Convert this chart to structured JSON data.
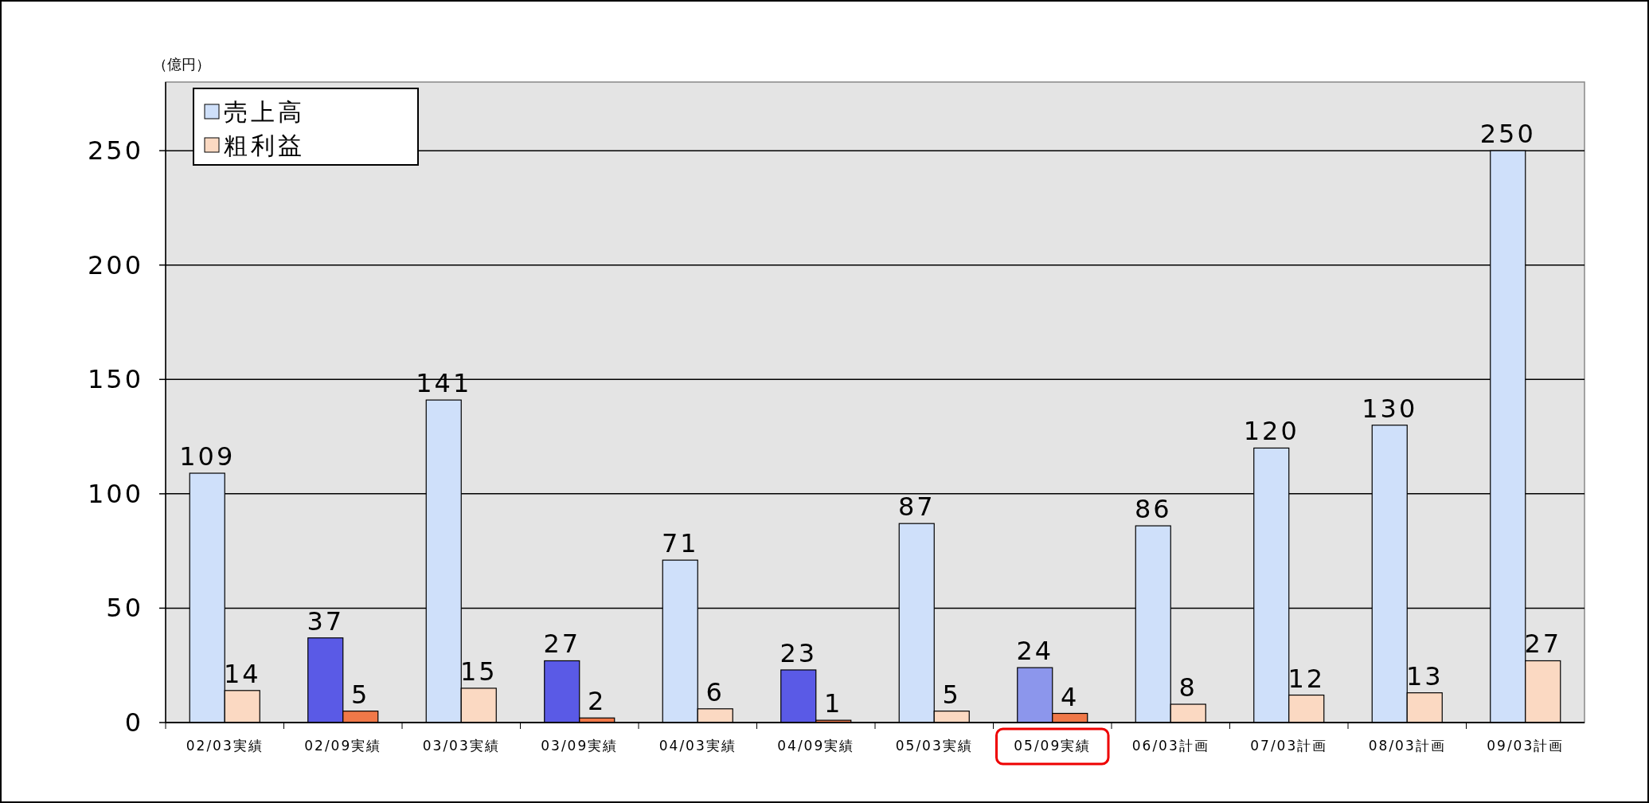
{
  "chart_data": {
    "type": "bar",
    "ylabel": "（億円）",
    "categories": [
      "02/03実績",
      "02/09実績",
      "03/03実績",
      "03/09実績",
      "04/03実績",
      "04/09実績",
      "05/03実績",
      "05/09実績",
      "06/03計画",
      "07/03計画",
      "08/03計画",
      "09/03計画"
    ],
    "series": [
      {
        "name": "売上高",
        "color": "#cfe0fa",
        "colors": [
          "#cfe0fa",
          "#5a5ae6",
          "#cfe0fa",
          "#5a5ae6",
          "#cfe0fa",
          "#5a5ae6",
          "#cfe0fa",
          "#8c96ec",
          "#cfe0fa",
          "#cfe0fa",
          "#cfe0fa",
          "#cfe0fa"
        ],
        "values": [
          109,
          37,
          141,
          27,
          71,
          23,
          87,
          24,
          86,
          120,
          130,
          250
        ]
      },
      {
        "name": "粗利益",
        "color": "#fbd9c2",
        "colors": [
          "#fbd9c2",
          "#f07848",
          "#fbd9c2",
          "#f07848",
          "#fbd9c2",
          "#f07848",
          "#fbd9c2",
          "#f07848",
          "#fbd9c2",
          "#fbd9c2",
          "#fbd9c2",
          "#fbd9c2"
        ],
        "values": [
          14,
          5,
          15,
          2,
          6,
          1,
          5,
          4,
          8,
          12,
          13,
          27
        ]
      }
    ],
    "ylim": [
      0,
      280
    ],
    "yticks": [
      0,
      50,
      100,
      150,
      200,
      250
    ],
    "grid": "y",
    "legend": "top left",
    "data_labels": true
  }
}
